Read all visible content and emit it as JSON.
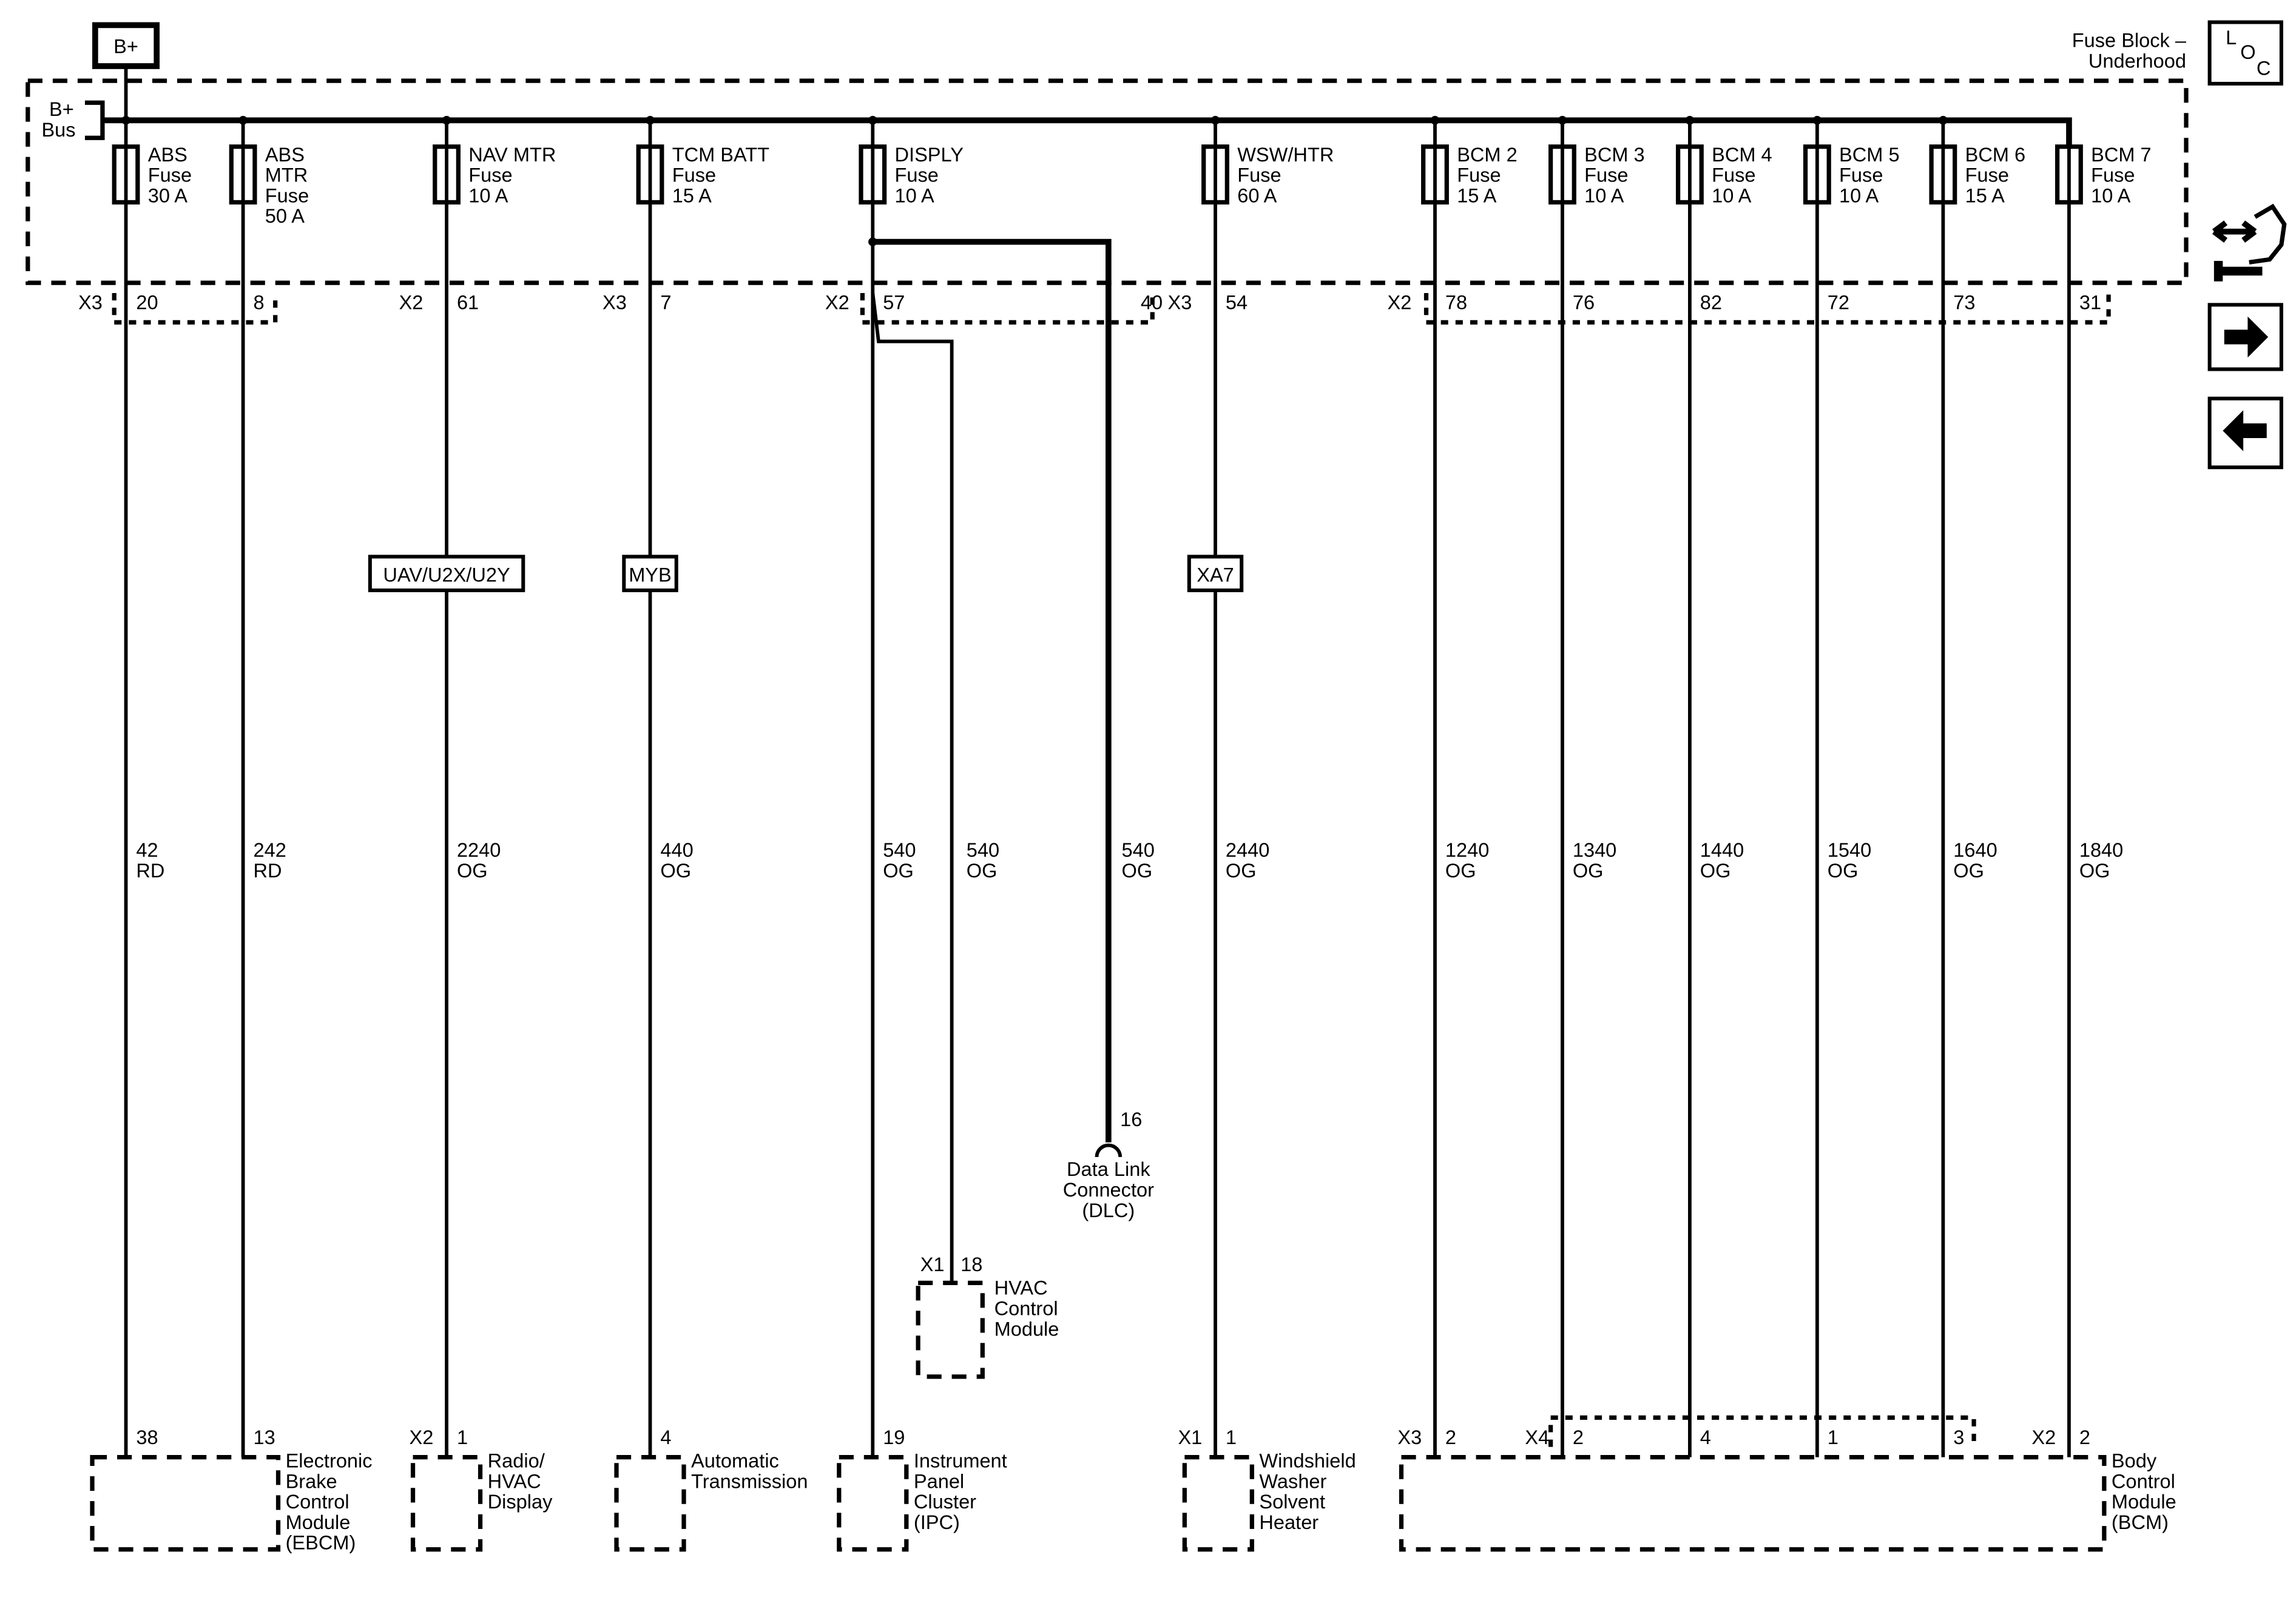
{
  "header": {
    "source_label": "B+",
    "bus_label": [
      "B+",
      "Bus"
    ],
    "fuse_block_label": [
      "Fuse Block –",
      "Underhood"
    ],
    "loc_button": [
      "L",
      "O",
      "C"
    ]
  },
  "nav": {
    "icons": [
      "connector-tool-icon",
      "next-arrow-icon",
      "back-arrow-icon"
    ]
  },
  "circuits": [
    {
      "fuse": [
        "ABS",
        "Fuse",
        "30 A"
      ],
      "top_conn": "X3",
      "top_pin": "20",
      "option": "",
      "wire": [
        "42",
        "RD"
      ],
      "bot_conn": "",
      "bot_pin": "38"
    },
    {
      "fuse": [
        "ABS",
        "MTR",
        "Fuse",
        "50 A"
      ],
      "top_conn": "",
      "top_pin": "8",
      "option": "",
      "wire": [
        "242",
        "RD"
      ],
      "bot_conn": "",
      "bot_pin": "13"
    },
    {
      "fuse": [
        "NAV MTR",
        "Fuse",
        "10 A"
      ],
      "top_conn": "X2",
      "top_pin": "61",
      "option": "UAV/U2X/U2Y",
      "wire": [
        "2240",
        "OG"
      ],
      "bot_conn": "X2",
      "bot_pin": "1"
    },
    {
      "fuse": [
        "TCM BATT",
        "Fuse",
        "15 A"
      ],
      "top_conn": "X3",
      "top_pin": "7",
      "option": "MYB",
      "wire": [
        "440",
        "OG"
      ],
      "bot_conn": "",
      "bot_pin": "4"
    },
    {
      "fuse": [
        "DISPLY",
        "Fuse",
        "10 A"
      ],
      "top_conn": "X2",
      "top_pin": "57",
      "option": "",
      "wire": [
        "540",
        "OG"
      ],
      "bot_conn": "",
      "bot_pin": "19"
    },
    {
      "fuse": [
        "WSW/HTR",
        "Fuse",
        "60 A"
      ],
      "top_conn": "X3",
      "top_pin": "54",
      "option": "XA7",
      "wire": [
        "2440",
        "OG"
      ],
      "bot_conn": "X1",
      "bot_pin": "1"
    },
    {
      "fuse": [
        "BCM 2",
        "Fuse",
        "15 A"
      ],
      "top_conn": "X2",
      "top_pin": "78",
      "option": "",
      "wire": [
        "1240",
        "OG"
      ],
      "bot_conn": "X3",
      "bot_pin": "2"
    },
    {
      "fuse": [
        "BCM 3",
        "Fuse",
        "10 A"
      ],
      "top_conn": "",
      "top_pin": "76",
      "option": "",
      "wire": [
        "1340",
        "OG"
      ],
      "bot_conn": "X4",
      "bot_pin": "2"
    },
    {
      "fuse": [
        "BCM 4",
        "Fuse",
        "10 A"
      ],
      "top_conn": "",
      "top_pin": "82",
      "option": "",
      "wire": [
        "1440",
        "OG"
      ],
      "bot_conn": "",
      "bot_pin": "4"
    },
    {
      "fuse": [
        "BCM 5",
        "Fuse",
        "10 A"
      ],
      "top_conn": "",
      "top_pin": "72",
      "option": "",
      "wire": [
        "1540",
        "OG"
      ],
      "bot_conn": "",
      "bot_pin": "1"
    },
    {
      "fuse": [
        "BCM 6",
        "Fuse",
        "15 A"
      ],
      "top_conn": "",
      "top_pin": "73",
      "option": "",
      "wire": [
        "1640",
        "OG"
      ],
      "bot_conn": "",
      "bot_pin": "3"
    },
    {
      "fuse": [
        "BCM 7",
        "Fuse",
        "10 A"
      ],
      "top_conn": "",
      "top_pin": "31",
      "option": "",
      "wire": [
        "1840",
        "OG"
      ],
      "bot_conn": "X2",
      "bot_pin": "2"
    }
  ],
  "branches": {
    "hvac": {
      "wire": [
        "540",
        "OG"
      ],
      "conn": "X1",
      "pin": "18",
      "name": [
        "HVAC",
        "Control",
        "Module"
      ]
    },
    "dlc": {
      "wire": [
        "540",
        "OG"
      ],
      "top_pin": "40",
      "pin": "16",
      "name": [
        "Data Link",
        "Connector",
        "(DLC)"
      ]
    }
  },
  "components": [
    {
      "name": [
        "Electronic",
        "Brake",
        "Control",
        "Module",
        "(EBCM)"
      ]
    },
    {
      "name": [
        "Radio/",
        "HVAC",
        "Display"
      ]
    },
    {
      "name": [
        "Automatic",
        "Transmission"
      ]
    },
    {
      "name": [
        "Instrument",
        "Panel",
        "Cluster",
        "(IPC)"
      ]
    },
    {
      "name": [
        "Windshield",
        "Washer",
        "Solvent",
        "Heater"
      ]
    },
    {
      "name": [
        "Body",
        "Control",
        "Module",
        "(BCM)"
      ]
    }
  ]
}
